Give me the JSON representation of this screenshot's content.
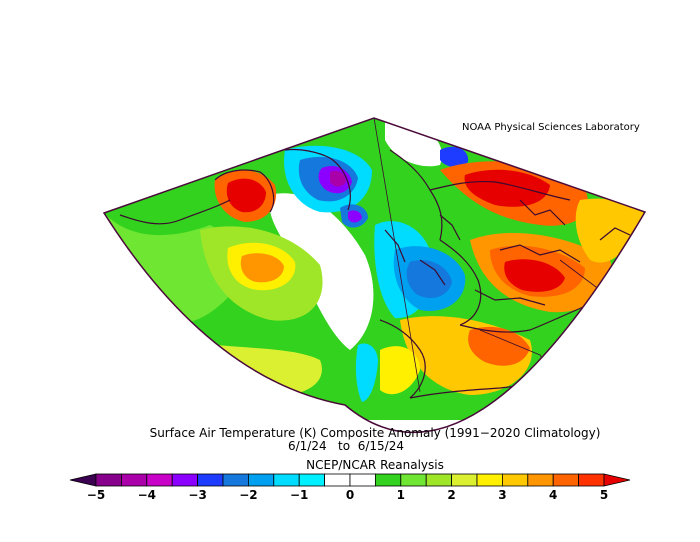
{
  "header": {
    "lab": "NOAA Physical Sciences Laboratory"
  },
  "caption": {
    "title": "Surface Air Temperature (K) Composite Anomaly (1991−2020 Climatology)",
    "dates": "6/1/24   to  6/15/24",
    "source": "NCEP/NCAR Reanalysis"
  },
  "colorbar": {
    "tick_labels": [
      "−5",
      "−4",
      "−3",
      "−2",
      "−1",
      "0",
      "1",
      "2",
      "3",
      "4",
      "5"
    ],
    "colors": [
      "#3c0050",
      "#87008c",
      "#aa00aa",
      "#c800c8",
      "#8c00ff",
      "#1e3cff",
      "#1478dc",
      "#00a0f0",
      "#00dcff",
      "#00f0ff",
      "#ffffff",
      "#ffffff",
      "#32d21e",
      "#6ee632",
      "#a0e628",
      "#dcf032",
      "#fff000",
      "#ffc800",
      "#ff9600",
      "#ff6400",
      "#ff3200",
      "#e60000"
    ],
    "min": -5,
    "max": 5,
    "interval": 0.5
  },
  "map": {
    "variable": "Surface Air Temperature Anomaly",
    "units": "K",
    "projection": "conic",
    "region": "North Atlantic / Europe",
    "colors": {
      "boundary": "#4a0a3a",
      "land_outline": "#3c0a30"
    }
  }
}
